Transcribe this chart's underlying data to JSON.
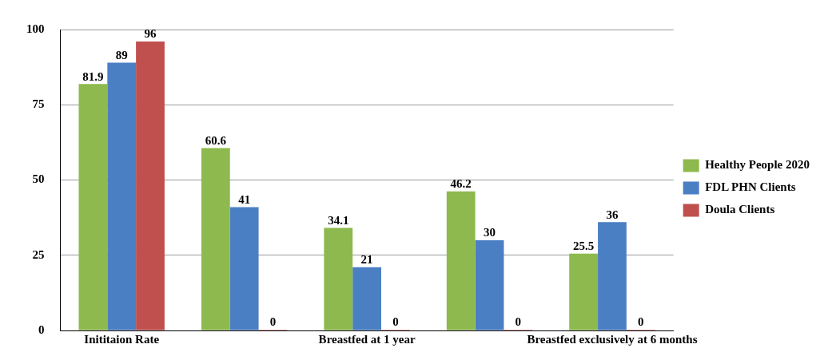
{
  "chart_data": {
    "type": "bar",
    "categories": [
      "Inititaion Rate",
      null,
      "Breastfed at 1 year",
      null,
      "Breastfed exclusively at 6 months"
    ],
    "series": [
      {
        "name": "Healthy People 2020",
        "color": "#8db94e",
        "values": [
          81.9,
          60.6,
          34.1,
          46.2,
          25.5
        ]
      },
      {
        "name": "FDL PHN Clients",
        "color": "#4a7fc4",
        "values": [
          89,
          41,
          21,
          30,
          36
        ]
      },
      {
        "name": "Doula Clients",
        "color": "#c0504d",
        "values": [
          96,
          0,
          0,
          0,
          0
        ]
      }
    ],
    "ylim": [
      0,
      100
    ],
    "yticks": [
      0,
      25,
      50,
      75,
      100
    ],
    "grid": "y",
    "legend": "right",
    "data_labels": true
  }
}
